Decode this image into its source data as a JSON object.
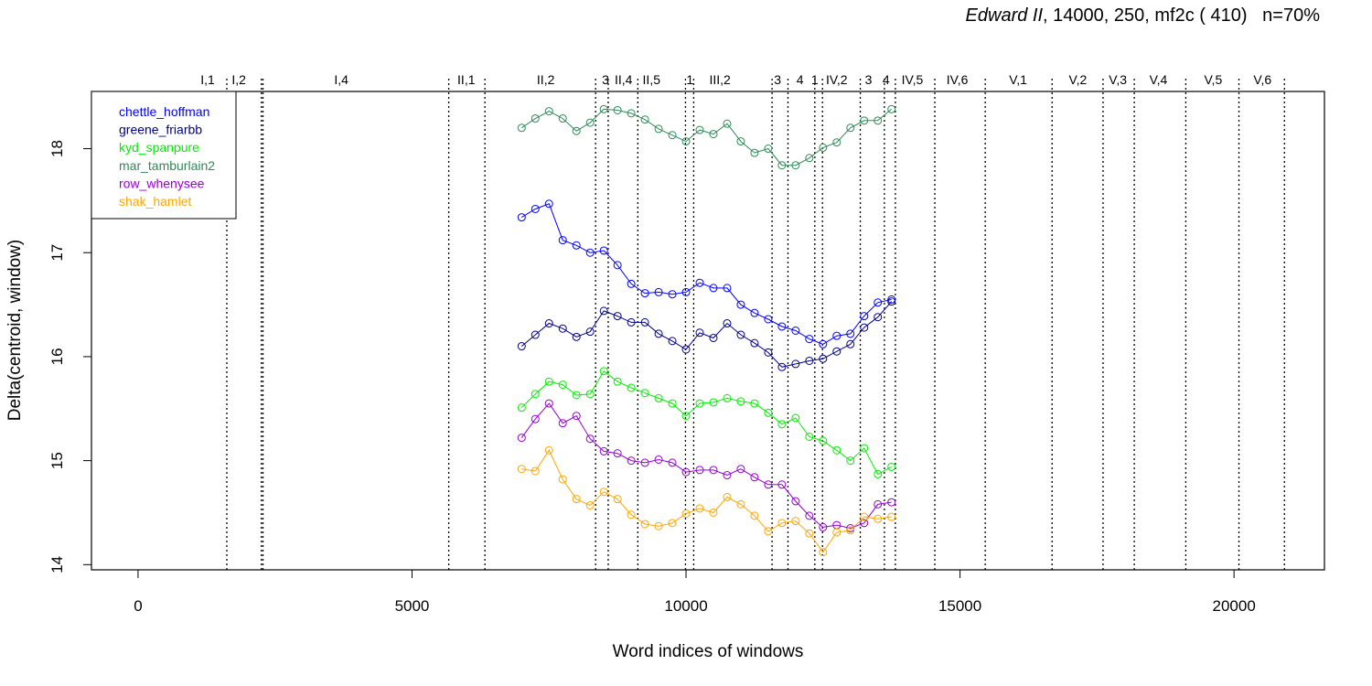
{
  "chart_data": {
    "type": "line",
    "title_italic": "Edward II",
    "title_rest": ", 14000, 250, mf2c ( 410)   n=70%",
    "xlabel": "Word indices of windows",
    "ylabel": "Delta(centroid, window)",
    "xlim": [
      -850,
      21650
    ],
    "ylim": [
      13.95,
      18.55
    ],
    "x_ticks": [
      0,
      5000,
      10000,
      15000,
      20000
    ],
    "x_tick_labels": [
      "0",
      "5000",
      "10000",
      "15000",
      "20000"
    ],
    "y_ticks": [
      14,
      15,
      16,
      17,
      18
    ],
    "y_tick_labels": [
      "14",
      "15",
      "16",
      "17",
      "18"
    ],
    "grid": false,
    "legend_position": "top-left",
    "scene_boundaries": [
      1620,
      2250,
      2280,
      5670,
      6330,
      8350,
      8580,
      9120,
      9990,
      10140,
      11570,
      11860,
      12350,
      12490,
      13180,
      13620,
      13820,
      14540,
      15460,
      16680,
      17610,
      18180,
      19120,
      20090,
      20920
    ],
    "scene_labels": [
      {
        "label": "I,1",
        "x": 1270
      },
      {
        "label": "I,2",
        "x": 1840
      },
      {
        "label": "I,4",
        "x": 3710
      },
      {
        "label": "II,1",
        "x": 5990
      },
      {
        "label": "II,2",
        "x": 7440
      },
      {
        "label": "3",
        "x": 8530
      },
      {
        "label": "II,4",
        "x": 8860
      },
      {
        "label": "II,5",
        "x": 9370
      },
      {
        "label": "1",
        "x": 10070
      },
      {
        "label": "III,2",
        "x": 10620
      },
      {
        "label": "3",
        "x": 11670
      },
      {
        "label": "4",
        "x": 12080
      },
      {
        "label": "1",
        "x": 12350
      },
      {
        "label": "IV,2",
        "x": 12750
      },
      {
        "label": "3",
        "x": 13330
      },
      {
        "label": "4",
        "x": 13650
      },
      {
        "label": "IV,5",
        "x": 14130
      },
      {
        "label": "IV,6",
        "x": 14950
      },
      {
        "label": "V,1",
        "x": 16060
      },
      {
        "label": "V,2",
        "x": 17150
      },
      {
        "label": "V,3",
        "x": 17880
      },
      {
        "label": "V,4",
        "x": 18620
      },
      {
        "label": "V,5",
        "x": 19620
      },
      {
        "label": "V,6",
        "x": 20520
      }
    ],
    "x": [
      7000,
      7250,
      7500,
      7750,
      8000,
      8250,
      8500,
      8750,
      9000,
      9250,
      9500,
      9750,
      10000,
      10250,
      10500,
      10750,
      11000,
      11250,
      11500,
      11750,
      12000,
      12250,
      12500,
      12750,
      13000,
      13250,
      13500,
      13750
    ],
    "series": [
      {
        "name": "chettle_hoffman",
        "color": "#0000ff",
        "values": [
          17.34,
          17.42,
          17.47,
          17.12,
          17.07,
          17.0,
          17.02,
          16.88,
          16.7,
          16.61,
          16.62,
          16.6,
          16.62,
          16.71,
          16.66,
          16.66,
          16.5,
          16.42,
          16.36,
          16.29,
          16.25,
          16.17,
          16.12,
          16.2,
          16.22,
          16.39,
          16.52,
          16.55
        ]
      },
      {
        "name": "greene_friarbb",
        "color": "#00008b",
        "values": [
          16.1,
          16.21,
          16.32,
          16.27,
          16.19,
          16.24,
          16.44,
          16.39,
          16.33,
          16.33,
          16.22,
          16.15,
          16.07,
          16.23,
          16.18,
          16.32,
          16.21,
          16.13,
          16.04,
          15.9,
          15.93,
          15.96,
          15.98,
          16.05,
          16.12,
          16.28,
          16.38,
          16.53
        ]
      },
      {
        "name": "kyd_spanpure",
        "color": "#00ee00",
        "values": [
          15.51,
          15.64,
          15.76,
          15.73,
          15.63,
          15.64,
          15.86,
          15.76,
          15.7,
          15.65,
          15.6,
          15.55,
          15.43,
          15.55,
          15.56,
          15.6,
          15.57,
          15.55,
          15.46,
          15.35,
          15.41,
          15.23,
          15.19,
          15.1,
          15.0,
          15.12,
          14.87,
          14.94
        ]
      },
      {
        "name": "mar_tamburlain2",
        "color": "#2e8b57",
        "values": [
          18.2,
          18.29,
          18.36,
          18.29,
          18.17,
          18.25,
          18.38,
          18.37,
          18.34,
          18.28,
          18.19,
          18.13,
          18.07,
          18.18,
          18.14,
          18.24,
          18.07,
          17.96,
          18.0,
          17.84,
          17.84,
          17.91,
          18.01,
          18.06,
          18.2,
          18.27,
          18.27,
          18.38
        ]
      },
      {
        "name": "row_whenysee",
        "color": "#9400d3",
        "values": [
          15.22,
          15.4,
          15.55,
          15.36,
          15.43,
          15.21,
          15.09,
          15.07,
          15.0,
          14.98,
          15.01,
          14.98,
          14.89,
          14.91,
          14.91,
          14.86,
          14.92,
          14.84,
          14.77,
          14.77,
          14.61,
          14.47,
          14.36,
          14.38,
          14.35,
          14.4,
          14.58,
          14.6
        ]
      },
      {
        "name": "shak_hamlet",
        "color": "#ffa500",
        "values": [
          14.92,
          14.9,
          15.1,
          14.82,
          14.63,
          14.57,
          14.7,
          14.63,
          14.48,
          14.39,
          14.37,
          14.4,
          14.49,
          14.54,
          14.5,
          14.65,
          14.58,
          14.47,
          14.32,
          14.4,
          14.42,
          14.3,
          14.12,
          14.31,
          14.33,
          14.46,
          14.44,
          14.46
        ]
      }
    ]
  }
}
